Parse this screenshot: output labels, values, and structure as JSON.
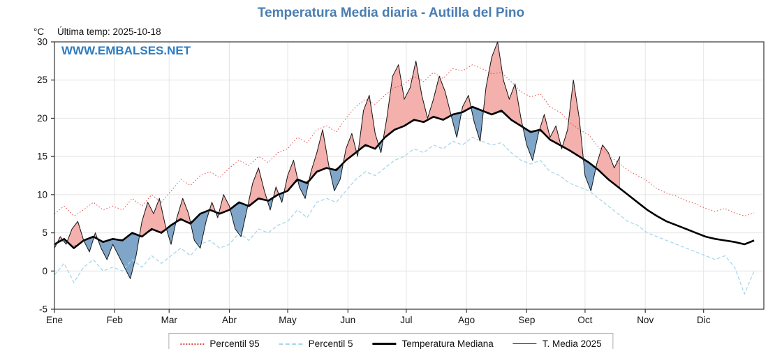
{
  "page": {
    "title": "Temperatura Media diaria - Autilla del Pino",
    "unit_label": "°C",
    "last_temp_label": "Última temp: 2025-10-18",
    "watermark": "WWW.EMBALSES.NET"
  },
  "legend": [
    {
      "label": "Percentil 95"
    },
    {
      "label": "Percentil 5"
    },
    {
      "label": "Temperatura Mediana"
    },
    {
      "label": "T. Media 2025"
    }
  ],
  "chart_data": {
    "type": "line",
    "title": "Temperatura Media diaria - Autilla del Pino",
    "xlabel": "",
    "ylabel": "°C",
    "x_range": [
      0,
      365
    ],
    "y_range": [
      -5,
      30
    ],
    "y_ticks": [
      -5,
      0,
      5,
      10,
      15,
      20,
      25,
      30
    ],
    "grid": true,
    "legend_position": "bottom",
    "months": [
      {
        "label": "Ene",
        "day": 0
      },
      {
        "label": "Feb",
        "day": 31
      },
      {
        "label": "Mar",
        "day": 59
      },
      {
        "label": "Abr",
        "day": 90
      },
      {
        "label": "May",
        "day": 120
      },
      {
        "label": "Jun",
        "day": 151
      },
      {
        "label": "Jul",
        "day": 181
      },
      {
        "label": "Ago",
        "day": 212
      },
      {
        "label": "Sep",
        "day": 243
      },
      {
        "label": "Oct",
        "day": 273
      },
      {
        "label": "Nov",
        "day": 304
      },
      {
        "label": "Dic",
        "day": 334
      }
    ],
    "colors": {
      "p95": "#e04b4b",
      "p5": "#a8d7e8",
      "median": "#000000",
      "t2025": "#1a1a1a",
      "fill_above": "#f3b0ac",
      "fill_above_edge": "#9e2f2f",
      "fill_below": "#7fa6c9",
      "fill_below_edge": "#2e4d77",
      "grid": "#e4e4e4",
      "frame": "#333333",
      "title": "#4a7db2",
      "watermark": "#2e7bbf"
    },
    "series": {
      "percentil95": {
        "name": "Percentil 95",
        "x_step": 5,
        "values": [
          7.5,
          8.5,
          7.2,
          8.0,
          9.0,
          8.0,
          8.5,
          8.0,
          9.5,
          8.5,
          10.0,
          9.0,
          10.5,
          12.0,
          11.2,
          12.5,
          13.0,
          12.2,
          13.5,
          14.5,
          13.8,
          15.0,
          14.2,
          15.5,
          16.0,
          17.5,
          16.8,
          18.5,
          19.0,
          18.2,
          20.0,
          21.5,
          22.5,
          21.8,
          23.0,
          24.0,
          24.5,
          25.5,
          24.8,
          26.0,
          25.2,
          26.5,
          26.2,
          27.0,
          26.5,
          25.8,
          26.0,
          24.8,
          23.5,
          22.8,
          23.2,
          21.5,
          20.8,
          19.5,
          18.5,
          17.8,
          16.2,
          15.2,
          14.2,
          13.2,
          12.5,
          11.8,
          10.8,
          10.2,
          9.8,
          9.2,
          8.8,
          8.2,
          7.8,
          8.2,
          7.6,
          7.2,
          7.6
        ]
      },
      "percentil5": {
        "name": "Percentil 5",
        "x_step": 5,
        "values": [
          -0.5,
          1.0,
          -1.5,
          0.5,
          1.5,
          0.0,
          0.5,
          0.0,
          1.5,
          0.5,
          2.0,
          1.0,
          2.0,
          3.0,
          2.0,
          3.5,
          4.0,
          3.0,
          3.5,
          5.0,
          4.0,
          5.5,
          5.0,
          6.0,
          6.5,
          8.0,
          7.0,
          9.0,
          9.5,
          9.0,
          10.5,
          12.0,
          13.0,
          12.5,
          13.5,
          14.5,
          15.0,
          16.0,
          15.5,
          16.5,
          16.0,
          17.0,
          16.5,
          17.5,
          17.0,
          16.5,
          16.8,
          15.5,
          14.5,
          14.0,
          14.5,
          13.0,
          12.5,
          11.5,
          11.0,
          10.5,
          9.5,
          8.5,
          7.5,
          6.5,
          6.0,
          5.0,
          4.5,
          4.0,
          3.5,
          3.0,
          2.5,
          2.0,
          1.5,
          2.0,
          0.5,
          -3.0,
          0.0
        ]
      },
      "mediana": {
        "name": "Temperatura Mediana",
        "x_step": 5,
        "values": [
          3.5,
          4.2,
          3.0,
          4.0,
          4.5,
          3.8,
          4.2,
          4.0,
          5.0,
          4.5,
          5.5,
          5.0,
          6.0,
          6.8,
          6.2,
          7.5,
          8.0,
          7.5,
          8.0,
          9.0,
          8.5,
          9.5,
          9.2,
          10.0,
          10.5,
          12.0,
          11.5,
          13.0,
          13.5,
          13.2,
          14.5,
          15.5,
          16.5,
          16.0,
          17.5,
          18.5,
          19.0,
          19.8,
          19.5,
          20.2,
          19.8,
          20.5,
          20.8,
          21.5,
          21.0,
          20.5,
          21.0,
          19.8,
          19.0,
          18.2,
          18.5,
          17.2,
          16.5,
          15.8,
          15.0,
          14.2,
          13.2,
          12.0,
          11.0,
          10.0,
          9.0,
          8.0,
          7.2,
          6.5,
          6.0,
          5.5,
          5.0,
          4.5,
          4.2,
          4.0,
          3.8,
          3.5,
          4.0
        ]
      },
      "t2025": {
        "name": "T. Media 2025",
        "x_step": 3,
        "values": [
          3.0,
          4.5,
          3.5,
          5.5,
          6.5,
          4.0,
          2.5,
          5.0,
          3.0,
          1.5,
          3.5,
          2.0,
          0.5,
          -1.0,
          2.0,
          6.5,
          9.0,
          7.5,
          9.5,
          6.0,
          3.5,
          7.0,
          9.5,
          7.5,
          4.0,
          3.0,
          6.5,
          9.0,
          7.0,
          10.0,
          8.5,
          5.5,
          4.5,
          8.0,
          11.5,
          13.5,
          10.5,
          8.0,
          11.0,
          9.0,
          12.5,
          14.5,
          11.0,
          9.5,
          13.0,
          15.5,
          18.5,
          14.0,
          10.5,
          12.0,
          16.0,
          18.0,
          15.0,
          21.0,
          23.0,
          18.0,
          15.5,
          20.0,
          25.5,
          27.0,
          22.5,
          24.0,
          27.5,
          23.0,
          20.0,
          22.5,
          25.5,
          23.5,
          20.5,
          17.5,
          21.5,
          23.0,
          19.5,
          17.0,
          24.0,
          28.0,
          30.0,
          25.0,
          22.5,
          24.5,
          20.0,
          16.5,
          14.5,
          18.0,
          20.5,
          17.5,
          19.0,
          16.0,
          18.5,
          25.0,
          20.0,
          12.5,
          10.5,
          14.0,
          16.5,
          15.5,
          13.5,
          15.0
        ]
      }
    }
  }
}
